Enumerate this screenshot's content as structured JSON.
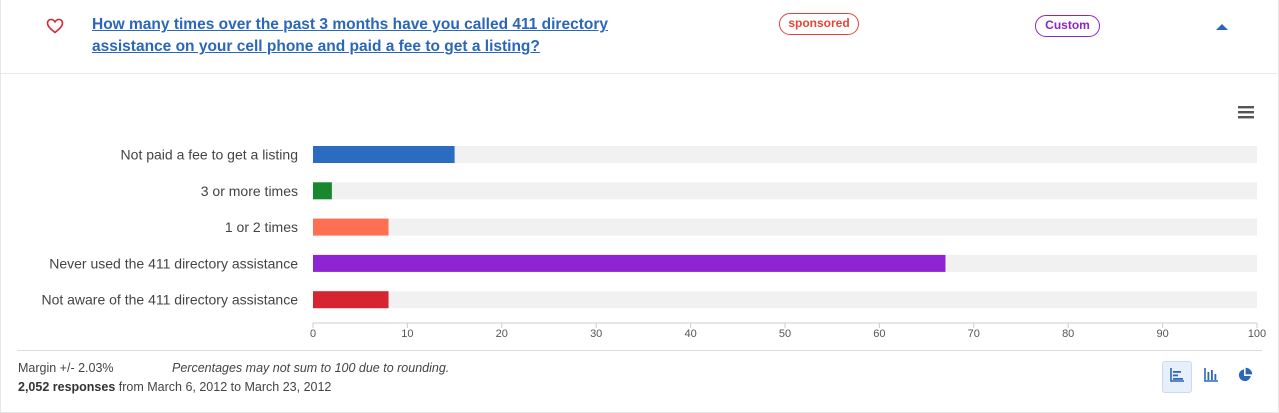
{
  "header": {
    "question": "How many times over the past 3 months have you called 411 directory assistance on your cell phone and paid a fee to get a listing?",
    "sponsored_label": "sponsored",
    "custom_label": "Custom",
    "favorite_icon": "heart-outline-icon",
    "collapse_icon": "caret-up-icon",
    "colors": {
      "link": "#2a67b8",
      "sponsored": "#e0463a",
      "custom": "#8e24c8"
    }
  },
  "chart_data": {
    "type": "bar",
    "orientation": "horizontal",
    "categories": [
      "Not paid a fee to get a listing",
      "3 or more times",
      "1 or 2 times",
      "Never used the 411 directory assistance",
      "Not aware of the 411 directory assistance"
    ],
    "values": [
      15,
      2,
      8,
      67,
      8
    ],
    "colors": [
      "#2b6cc0",
      "#17882e",
      "#ff7052",
      "#8e24d4",
      "#d62430"
    ],
    "track_color": "#f1f1f1",
    "xlim": [
      0,
      100
    ],
    "xticks": [
      0,
      10,
      20,
      30,
      40,
      50,
      60,
      70,
      80,
      90,
      100
    ],
    "xlabel": "",
    "ylabel": "",
    "grid": false
  },
  "footer": {
    "margin_text": "Margin +/- 2.03%",
    "note": "Percentages may not sum to 100 due to rounding.",
    "responses_count": "2,052 responses",
    "date_range": " from March 6, 2012 to March 23, 2012"
  },
  "toolbar": {
    "menu_icon": "hamburger-menu-icon",
    "views": [
      "horizontal-bar-chart-icon",
      "vertical-bar-chart-icon",
      "pie-chart-icon"
    ],
    "active_view": "horizontal-bar-chart-icon"
  }
}
